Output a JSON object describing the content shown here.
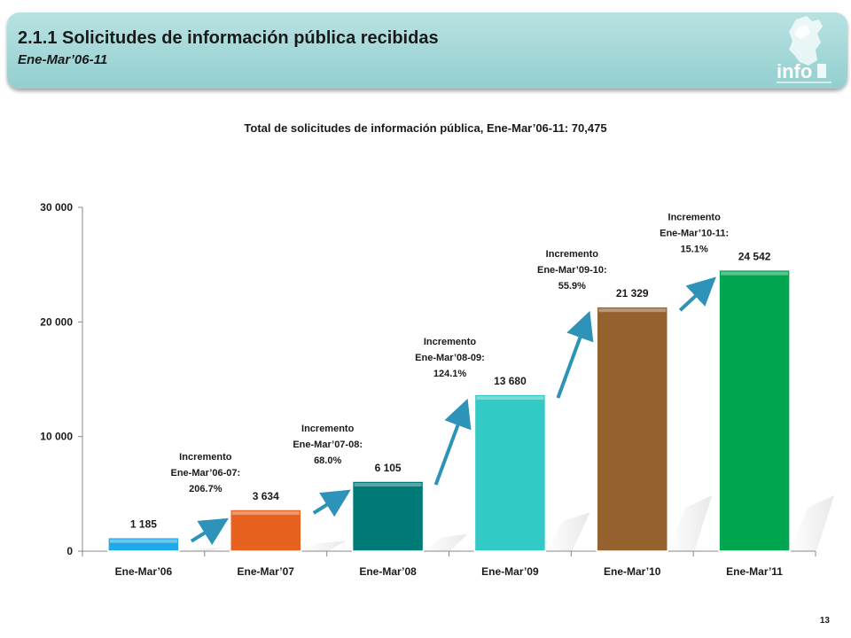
{
  "header": {
    "title": "2.1.1 Solicitudes de información pública recibidas",
    "subtitle": "Ene-Mar’06-11",
    "logo_text": "info"
  },
  "page_number": "13",
  "colors": {
    "header_bg": "#9fd6d6",
    "arrow": "#2d93b8"
  },
  "chart_data": {
    "type": "bar",
    "title": "Total de solicitudes de información pública, Ene-Mar’06-11: 70,475",
    "categories": [
      "Ene-Mar’06",
      "Ene-Mar’07",
      "Ene-Mar’08",
      "Ene-Mar’09",
      "Ene-Mar’10",
      "Ene-Mar’11"
    ],
    "values": [
      1185,
      3634,
      6105,
      13680,
      21329,
      24542
    ],
    "value_labels": [
      "1 185",
      "3 634",
      "6 105",
      "13 680",
      "21 329",
      "24 542"
    ],
    "bar_colors": [
      "#1fa9e8",
      "#e8621f",
      "#007a76",
      "#33c9c4",
      "#95622f",
      "#00a550"
    ],
    "ylim": [
      0,
      30000
    ],
    "yticks": [
      0,
      10000,
      20000,
      30000
    ],
    "ytick_labels": [
      "0",
      "10 000",
      "20 000",
      "30 000"
    ],
    "xlabel": "",
    "ylabel": "",
    "grid": false,
    "legend": "none",
    "annotations": [
      {
        "lines": [
          "Incremento",
          "Ene-Mar’06-07:",
          "206.7%"
        ],
        "between": [
          0,
          1
        ]
      },
      {
        "lines": [
          "Incremento",
          "Ene-Mar’07-08:",
          "68.0%"
        ],
        "between": [
          1,
          2
        ]
      },
      {
        "lines": [
          "Incremento",
          "Ene-Mar’08-09:",
          "124.1%"
        ],
        "between": [
          2,
          3
        ]
      },
      {
        "lines": [
          "Incremento",
          "Ene-Mar’09-10:",
          "55.9%"
        ],
        "between": [
          3,
          4
        ]
      },
      {
        "lines": [
          "Incremento",
          "Ene-Mar’10-11:",
          "15.1%"
        ],
        "between": [
          4,
          5
        ]
      }
    ]
  }
}
